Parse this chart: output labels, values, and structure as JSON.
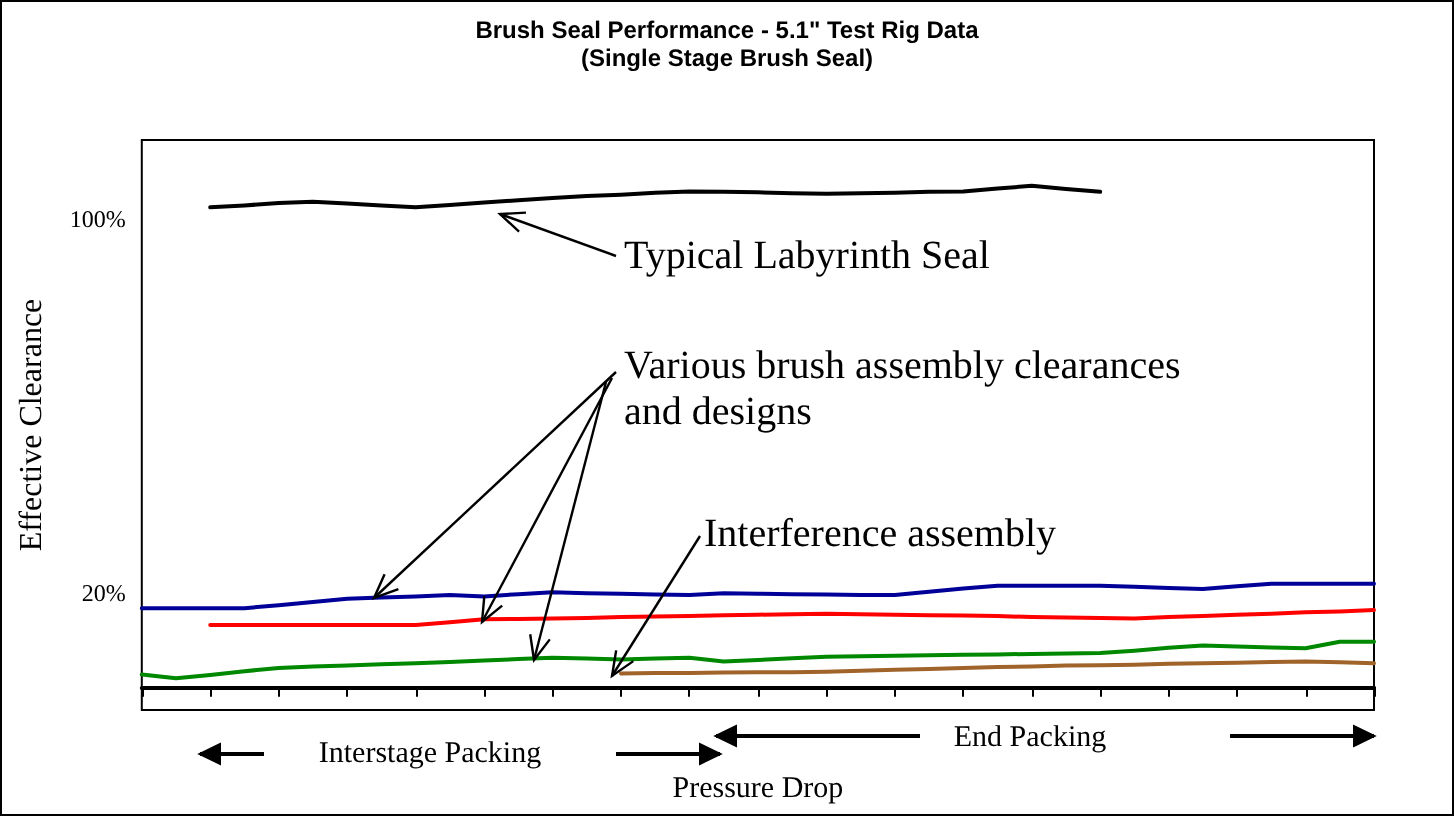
{
  "chart_data": {
    "type": "line",
    "title": "Brush Seal Performance - 5.1\" Test Rig Data",
    "subtitle": "(Single Stage Brush Seal)",
    "xlabel": "Pressure Drop",
    "ylabel": "Effective Clearance",
    "categories": [
      null,
      null,
      null,
      null,
      null,
      null,
      null,
      null,
      null,
      null,
      null,
      null,
      null,
      null,
      null,
      null,
      null,
      null,
      null,
      null,
      null,
      null,
      null,
      null,
      null,
      null,
      null,
      null,
      null,
      null,
      null,
      null,
      null,
      null,
      null,
      null,
      null
    ],
    "series": [
      {
        "color": "#000000",
        "values": [
          null,
          null,
          102.6,
          103,
          103.5,
          103.8,
          103.4,
          103,
          102.6,
          103.1,
          103.6,
          104.1,
          104.6,
          105,
          105.3,
          105.7,
          106,
          105.9,
          105.8,
          105.6,
          105.5,
          105.6,
          105.7,
          105.9,
          106,
          106.6,
          107.2,
          106.5,
          105.9,
          null,
          null,
          null,
          null,
          null,
          null,
          null,
          null
        ]
      },
      {
        "color": "#000099",
        "values": [
          16.8,
          16.8,
          16.8,
          16.8,
          17.4,
          18.1,
          18.8,
          19.1,
          19.3,
          19.6,
          19.3,
          19.8,
          20.2,
          20,
          19.9,
          19.7,
          19.6,
          20,
          19.9,
          19.8,
          19.7,
          19.6,
          19.6,
          20.3,
          21,
          21.6,
          21.6,
          21.6,
          21.6,
          21.4,
          21.1,
          20.9,
          21.5,
          22,
          22,
          22,
          22
        ]
      },
      {
        "color": "#ff0000",
        "values": [
          null,
          null,
          13.2,
          13.2,
          13.2,
          13.2,
          13.2,
          13.2,
          13.2,
          13.8,
          14.4,
          14.5,
          14.6,
          14.7,
          14.9,
          15,
          15.1,
          15.3,
          15.4,
          15.5,
          15.6,
          15.5,
          15.4,
          15.3,
          15.2,
          15.1,
          14.9,
          14.8,
          14.7,
          14.6,
          14.9,
          15.1,
          15.4,
          15.6,
          15.9,
          16.1,
          16.4
        ]
      },
      {
        "color": "#008800",
        "values": [
          2.6,
          1.8,
          2.5,
          3.3,
          4,
          4.3,
          4.5,
          4.8,
          5,
          5.3,
          5.6,
          5.9,
          6.2,
          6,
          5.8,
          6,
          6.2,
          5.4,
          5.7,
          6.1,
          6.4,
          6.5,
          6.6,
          6.7,
          6.8,
          6.9,
          7,
          7.1,
          7.2,
          7.7,
          8.3,
          8.8,
          8.6,
          8.4,
          8.2,
          9.6,
          9.6
        ]
      },
      {
        "color": "#a0632a",
        "values": [
          null,
          null,
          null,
          null,
          null,
          null,
          null,
          null,
          null,
          null,
          null,
          null,
          null,
          null,
          2.8,
          2.9,
          2.9,
          3,
          3.1,
          3.1,
          3.2,
          3.4,
          3.6,
          3.8,
          4,
          4.2,
          4.3,
          4.5,
          4.6,
          4.7,
          4.9,
          5,
          5.1,
          5.3,
          5.4,
          5.2,
          5
        ]
      }
    ],
    "ylim": [
      -5,
      117
    ],
    "yticks": [
      {
        "value": 100,
        "label": "100%"
      },
      {
        "value": 20,
        "label": "20%"
      }
    ],
    "annotations": [
      "Typical Labyrinth Seal",
      "Various brush assembly clearances and designs",
      "Interference assembly",
      "Interstage Packing",
      "End Packing"
    ],
    "grid": false,
    "marker": "none",
    "line_style": "solid"
  }
}
